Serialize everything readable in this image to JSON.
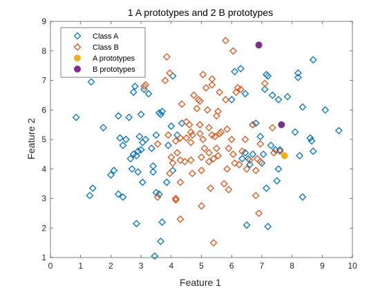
{
  "chart_data": {
    "type": "scatter",
    "title": "1 A prototypes and 2 B prototypes",
    "xlabel": "Feature 1",
    "ylabel": "Feature 2",
    "xlim": [
      0,
      10
    ],
    "ylim": [
      1,
      9
    ],
    "xticks": [
      "0",
      "1",
      "2",
      "3",
      "4",
      "5",
      "6",
      "7",
      "8",
      "9",
      "10"
    ],
    "yticks": [
      "1",
      "2",
      "3",
      "4",
      "5",
      "6",
      "7",
      "8",
      "9"
    ],
    "grid": false,
    "legend_position": "top-left",
    "series": [
      {
        "name": "Class A",
        "marker": "diamond-open",
        "color": "#0072BD",
        "points": [
          [
            0.85,
            5.75
          ],
          [
            1.3,
            3.1
          ],
          [
            1.4,
            3.35
          ],
          [
            1.35,
            6.95
          ],
          [
            1.75,
            5.4
          ],
          [
            2.0,
            3.8
          ],
          [
            2.1,
            3.95
          ],
          [
            2.25,
            5.8
          ],
          [
            2.25,
            3.15
          ],
          [
            2.4,
            3.05
          ],
          [
            2.3,
            5.05
          ],
          [
            2.4,
            4.8
          ],
          [
            2.5,
            5.0
          ],
          [
            2.6,
            5.75
          ],
          [
            2.65,
            4.35
          ],
          [
            2.7,
            4.0
          ],
          [
            2.75,
            4.5
          ],
          [
            2.8,
            6.8
          ],
          [
            2.75,
            6.6
          ],
          [
            2.85,
            4.45
          ],
          [
            2.9,
            3.9
          ],
          [
            2.9,
            4.6
          ],
          [
            2.95,
            5.1
          ],
          [
            3.0,
            5.85
          ],
          [
            3.0,
            4.65
          ],
          [
            3.05,
            4.9
          ],
          [
            3.05,
            3.55
          ],
          [
            3.1,
            6.7
          ],
          [
            3.15,
            5.0
          ],
          [
            3.25,
            6.55
          ],
          [
            3.35,
            4.7
          ],
          [
            3.4,
            3.9
          ],
          [
            3.4,
            4.1
          ],
          [
            3.5,
            5.15
          ],
          [
            3.5,
            3.2
          ],
          [
            3.6,
            5.9
          ],
          [
            3.7,
            5.95
          ],
          [
            3.65,
            5.85
          ],
          [
            3.7,
            2.2
          ],
          [
            3.6,
            3.15
          ],
          [
            3.65,
            1.55
          ],
          [
            3.45,
            1.05
          ],
          [
            2.85,
            2.15
          ],
          [
            3.85,
            3.55
          ],
          [
            3.9,
            4.8
          ],
          [
            4.05,
            7.15
          ],
          [
            4.0,
            5.45
          ],
          [
            4.05,
            3.95
          ],
          [
            4.2,
            5.15
          ],
          [
            4.35,
            5.55
          ],
          [
            6.0,
            6.35
          ],
          [
            6.1,
            7.3
          ],
          [
            6.3,
            7.4
          ],
          [
            6.45,
            6.55
          ],
          [
            6.35,
            4.35
          ],
          [
            6.45,
            4.55
          ],
          [
            6.55,
            4.35
          ],
          [
            6.6,
            4.15
          ],
          [
            6.7,
            4.5
          ],
          [
            6.7,
            5.5
          ],
          [
            6.8,
            5.55
          ],
          [
            6.5,
            2.1
          ],
          [
            6.95,
            5.1
          ],
          [
            7.0,
            4.2
          ],
          [
            7.05,
            4.5
          ],
          [
            7.1,
            6.7
          ],
          [
            7.15,
            3.35
          ],
          [
            7.15,
            7.2
          ],
          [
            7.2,
            7.15
          ],
          [
            7.2,
            2.05
          ],
          [
            7.35,
            6.5
          ],
          [
            7.3,
            4.8
          ],
          [
            7.45,
            4.65
          ],
          [
            7.5,
            3.6
          ],
          [
            7.55,
            4.0
          ],
          [
            7.55,
            6.35
          ],
          [
            7.6,
            4.65
          ],
          [
            7.85,
            6.45
          ],
          [
            8.1,
            5.25
          ],
          [
            8.2,
            7.25
          ],
          [
            8.2,
            7.1
          ],
          [
            8.25,
            4.45
          ],
          [
            8.35,
            3.05
          ],
          [
            8.35,
            6.1
          ],
          [
            8.6,
            5.05
          ],
          [
            8.65,
            4.95
          ],
          [
            8.7,
            4.6
          ],
          [
            8.7,
            7.7
          ],
          [
            9.1,
            6.0
          ],
          [
            9.55,
            5.3
          ]
        ]
      },
      {
        "name": "Class B",
        "marker": "diamond-open",
        "color": "#D95319",
        "points": [
          [
            3.1,
            6.8
          ],
          [
            3.15,
            6.85
          ],
          [
            3.55,
            4.85
          ],
          [
            3.55,
            3.05
          ],
          [
            3.8,
            7.0
          ],
          [
            3.85,
            7.8
          ],
          [
            3.95,
            7.25
          ],
          [
            3.9,
            5.15
          ],
          [
            4.0,
            4.4
          ],
          [
            4.05,
            4.2
          ],
          [
            3.95,
            3.85
          ],
          [
            4.15,
            4.95
          ],
          [
            4.15,
            3.0
          ],
          [
            4.15,
            2.95
          ],
          [
            4.2,
            4.55
          ],
          [
            4.3,
            2.3
          ],
          [
            4.3,
            4.3
          ],
          [
            4.3,
            5.05
          ],
          [
            4.3,
            3.55
          ],
          [
            4.35,
            6.2
          ],
          [
            4.45,
            4.25
          ],
          [
            4.5,
            5.05
          ],
          [
            4.5,
            5.6
          ],
          [
            4.6,
            5.5
          ],
          [
            4.65,
            5.25
          ],
          [
            4.65,
            4.9
          ],
          [
            4.65,
            4.3
          ],
          [
            4.7,
            5.15
          ],
          [
            4.7,
            3.85
          ],
          [
            4.75,
            6.5
          ],
          [
            4.85,
            6.05
          ],
          [
            4.9,
            6.35
          ],
          [
            4.95,
            5.5
          ],
          [
            4.95,
            5.2
          ],
          [
            5.0,
            4.4
          ],
          [
            5.0,
            3.95
          ],
          [
            5.05,
            7.2
          ],
          [
            5.05,
            5.0
          ],
          [
            5.1,
            4.7
          ],
          [
            5.0,
            2.75
          ],
          [
            5.15,
            6.75
          ],
          [
            5.2,
            6.0
          ],
          [
            5.25,
            5.4
          ],
          [
            5.25,
            4.25
          ],
          [
            5.25,
            4.55
          ],
          [
            5.3,
            3.35
          ],
          [
            5.35,
            5.15
          ],
          [
            5.35,
            6.85
          ],
          [
            5.35,
            7.05
          ],
          [
            5.4,
            4.35
          ],
          [
            5.4,
            1.5
          ],
          [
            5.45,
            5.1
          ],
          [
            5.5,
            4.7
          ],
          [
            5.5,
            5.8
          ],
          [
            5.55,
            4.45
          ],
          [
            5.6,
            6.6
          ],
          [
            5.65,
            5.25
          ],
          [
            5.75,
            3.5
          ],
          [
            5.8,
            6.35
          ],
          [
            5.85,
            5.35
          ],
          [
            5.9,
            4.7
          ],
          [
            5.85,
            4.0
          ],
          [
            5.9,
            3.3
          ],
          [
            6.0,
            5.0
          ],
          [
            6.05,
            4.5
          ],
          [
            6.1,
            4.2
          ],
          [
            6.15,
            6.6
          ],
          [
            6.2,
            6.75
          ],
          [
            6.25,
            4.15
          ],
          [
            6.3,
            6.7
          ],
          [
            6.35,
            4.6
          ],
          [
            6.45,
            5.0
          ],
          [
            6.5,
            4.0
          ],
          [
            6.6,
            4.3
          ],
          [
            6.7,
            5.5
          ],
          [
            6.8,
            3.95
          ],
          [
            6.85,
            4.35
          ],
          [
            6.95,
            4.25
          ],
          [
            6.95,
            4.85
          ],
          [
            6.9,
            2.5
          ],
          [
            7.1,
            6.9
          ],
          [
            7.4,
            4.55
          ],
          [
            7.6,
            4.6
          ],
          [
            7.35,
            5.4
          ],
          [
            6.8,
            3.1
          ],
          [
            5.8,
            8.35
          ],
          [
            6.05,
            8.0
          ],
          [
            5.6,
            5.2
          ],
          [
            4.95,
            6.3
          ],
          [
            5.55,
            5.95
          ]
        ]
      },
      {
        "name": "A prototypes",
        "marker": "filled-circle",
        "color": "#EDB120",
        "points": [
          [
            7.75,
            4.45
          ]
        ]
      },
      {
        "name": "B prototypes",
        "marker": "filled-circle",
        "color": "#7E2F8E",
        "points": [
          [
            6.9,
            8.2
          ],
          [
            7.65,
            5.5
          ]
        ]
      }
    ]
  }
}
